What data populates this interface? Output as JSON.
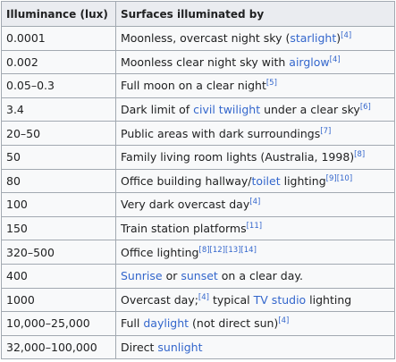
{
  "table": {
    "headers": [
      "Illuminance (lux)",
      "Surfaces illuminated by"
    ],
    "rows": [
      {
        "lux": "0.0001",
        "parts": [
          [
            "t",
            "Moonless, overcast night sky ("
          ],
          [
            "l",
            "starlight"
          ],
          [
            "t",
            ")"
          ],
          [
            "r",
            "[4]"
          ]
        ]
      },
      {
        "lux": "0.002",
        "parts": [
          [
            "t",
            "Moonless clear night sky with "
          ],
          [
            "l",
            "airglow"
          ],
          [
            "r",
            "[4]"
          ]
        ]
      },
      {
        "lux": "0.05–0.3",
        "parts": [
          [
            "t",
            "Full moon on a clear night"
          ],
          [
            "r",
            "[5]"
          ]
        ]
      },
      {
        "lux": "3.4",
        "parts": [
          [
            "t",
            "Dark limit of "
          ],
          [
            "l",
            "civil twilight"
          ],
          [
            "t",
            " under a clear sky"
          ],
          [
            "r",
            "[6]"
          ]
        ]
      },
      {
        "lux": "20–50",
        "parts": [
          [
            "t",
            "Public areas with dark surroundings"
          ],
          [
            "r",
            "[7]"
          ]
        ]
      },
      {
        "lux": "50",
        "parts": [
          [
            "t",
            "Family living room lights (Australia, 1998)"
          ],
          [
            "r",
            "[8]"
          ]
        ]
      },
      {
        "lux": "80",
        "parts": [
          [
            "t",
            "Office building hallway/"
          ],
          [
            "l",
            "toilet"
          ],
          [
            "t",
            " lighting"
          ],
          [
            "r",
            "[9]"
          ],
          [
            "r",
            "[10]"
          ]
        ]
      },
      {
        "lux": "100",
        "parts": [
          [
            "t",
            "Very dark overcast day"
          ],
          [
            "r",
            "[4]"
          ]
        ]
      },
      {
        "lux": "150",
        "parts": [
          [
            "t",
            "Train station platforms"
          ],
          [
            "r",
            "[11]"
          ]
        ]
      },
      {
        "lux": "320–500",
        "parts": [
          [
            "t",
            "Office lighting"
          ],
          [
            "r",
            "[8]"
          ],
          [
            "r",
            "[12]"
          ],
          [
            "r",
            "[13]"
          ],
          [
            "r",
            "[14]"
          ]
        ]
      },
      {
        "lux": "400",
        "parts": [
          [
            "l",
            "Sunrise"
          ],
          [
            "t",
            " or "
          ],
          [
            "l",
            "sunset"
          ],
          [
            "t",
            " on a clear day."
          ]
        ]
      },
      {
        "lux": "1000",
        "parts": [
          [
            "t",
            "Overcast day;"
          ],
          [
            "r",
            "[4]"
          ],
          [
            "t",
            " typical "
          ],
          [
            "l",
            "TV studio"
          ],
          [
            "t",
            " lighting"
          ]
        ]
      },
      {
        "lux": "10,000–25,000",
        "parts": [
          [
            "t",
            "Full "
          ],
          [
            "l",
            "daylight"
          ],
          [
            "t",
            " (not direct sun)"
          ],
          [
            "r",
            "[4]"
          ]
        ]
      },
      {
        "lux": "32,000–100,000",
        "parts": [
          [
            "t",
            "Direct "
          ],
          [
            "l",
            "sunlight"
          ]
        ]
      }
    ]
  }
}
